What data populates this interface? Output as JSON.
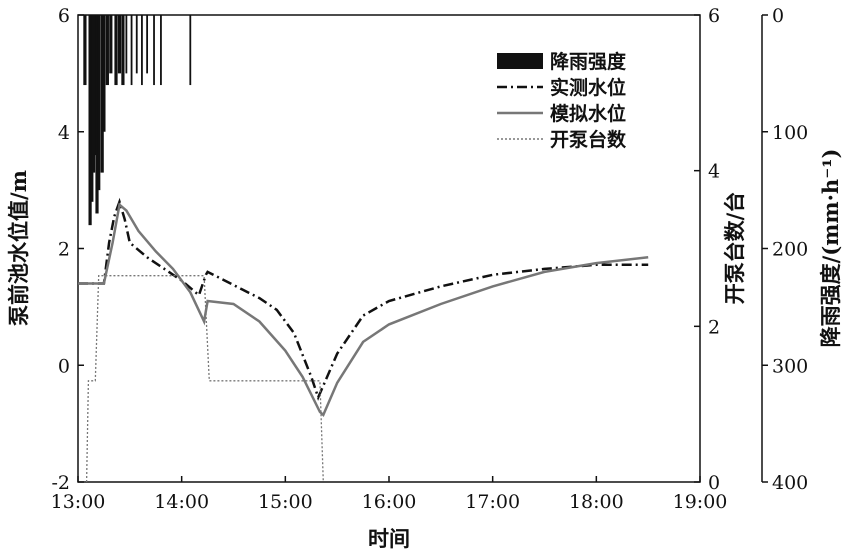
{
  "chart_data": {
    "type": "line",
    "xlabel": "时间",
    "ylabel_left": "泵前池水位值/m",
    "ylabel_right1": "开泵台数/台",
    "ylabel_right2": "降雨强度/(mm·h⁻¹)",
    "x_ticks": [
      "13:00",
      "14:00",
      "15:00",
      "16:00",
      "17:00",
      "18:00",
      "19:00"
    ],
    "xlim": [
      "13:00",
      "19:00"
    ],
    "y_left": {
      "lim": [
        -2,
        6
      ],
      "ticks": [
        "-2",
        "0",
        "2",
        "4",
        "6"
      ]
    },
    "y_right1": {
      "lim": [
        0,
        6
      ],
      "ticks": [
        "0",
        "2",
        "4",
        "6"
      ]
    },
    "y_right2": {
      "lim": [
        0,
        400
      ],
      "inverted": true,
      "ticks": [
        "0",
        "100",
        "200",
        "300",
        "400"
      ]
    },
    "grid": false,
    "legend": {
      "position": "top-right",
      "items": [
        {
          "label": "降雨强度",
          "style": "bar"
        },
        {
          "label": "实测水位",
          "style": "dash-dot"
        },
        {
          "label": "模拟水位",
          "style": "solid-gray"
        },
        {
          "label": "开泵台数",
          "style": "dotted"
        }
      ]
    },
    "series": [
      {
        "name": "降雨强度",
        "axis": "y_right2",
        "x": [
          "13:04",
          "13:07",
          "13:08",
          "13:09",
          "13:10",
          "13:11",
          "13:12",
          "13:14",
          "13:15",
          "13:17",
          "13:19",
          "13:22",
          "13:24",
          "13:26",
          "13:28",
          "13:31",
          "13:34",
          "13:37",
          "13:40",
          "13:44",
          "13:48",
          "14:05"
        ],
        "values": [
          60,
          180,
          160,
          135,
          120,
          170,
          150,
          135,
          100,
          60,
          50,
          60,
          50,
          60,
          50,
          60,
          50,
          60,
          50,
          60,
          60,
          60
        ]
      },
      {
        "name": "实测水位",
        "axis": "y_left",
        "x": [
          "13:00",
          "13:15",
          "13:18",
          "13:21",
          "13:24",
          "13:27",
          "13:30",
          "13:40",
          "13:50",
          "14:00",
          "14:10",
          "14:14",
          "14:15",
          "14:25",
          "14:35",
          "14:45",
          "14:55",
          "15:05",
          "15:15",
          "15:19",
          "15:22",
          "15:30",
          "15:45",
          "16:00",
          "16:30",
          "17:00",
          "17:30",
          "18:00",
          "18:30"
        ],
        "values": [
          1.4,
          1.4,
          2.1,
          2.55,
          2.8,
          2.5,
          2.1,
          1.85,
          1.65,
          1.45,
          1.2,
          1.55,
          1.6,
          1.45,
          1.3,
          1.15,
          0.95,
          0.55,
          -0.2,
          -0.55,
          -0.35,
          0.2,
          0.85,
          1.1,
          1.35,
          1.55,
          1.65,
          1.72,
          1.72
        ]
      },
      {
        "name": "模拟水位",
        "axis": "y_left",
        "x": [
          "13:00",
          "13:15",
          "13:20",
          "13:24",
          "13:28",
          "13:35",
          "13:45",
          "13:55",
          "14:05",
          "14:13",
          "14:15",
          "14:30",
          "14:45",
          "15:00",
          "15:10",
          "15:20",
          "15:22",
          "15:30",
          "15:45",
          "16:00",
          "16:30",
          "17:00",
          "17:30",
          "18:00",
          "18:30"
        ],
        "values": [
          1.4,
          1.4,
          2.1,
          2.75,
          2.65,
          2.3,
          1.95,
          1.65,
          1.25,
          0.75,
          1.1,
          1.05,
          0.75,
          0.25,
          -0.2,
          -0.8,
          -0.85,
          -0.3,
          0.4,
          0.7,
          1.05,
          1.35,
          1.6,
          1.75,
          1.85
        ]
      },
      {
        "name": "开泵台数",
        "axis": "y_right1",
        "step": true,
        "x": [
          "13:05",
          "13:06",
          "13:10",
          "13:12",
          "14:13",
          "14:16",
          "15:20",
          "15:22"
        ],
        "values": [
          0,
          1.3,
          1.3,
          2.65,
          2.65,
          1.3,
          1.3,
          0
        ]
      }
    ]
  }
}
